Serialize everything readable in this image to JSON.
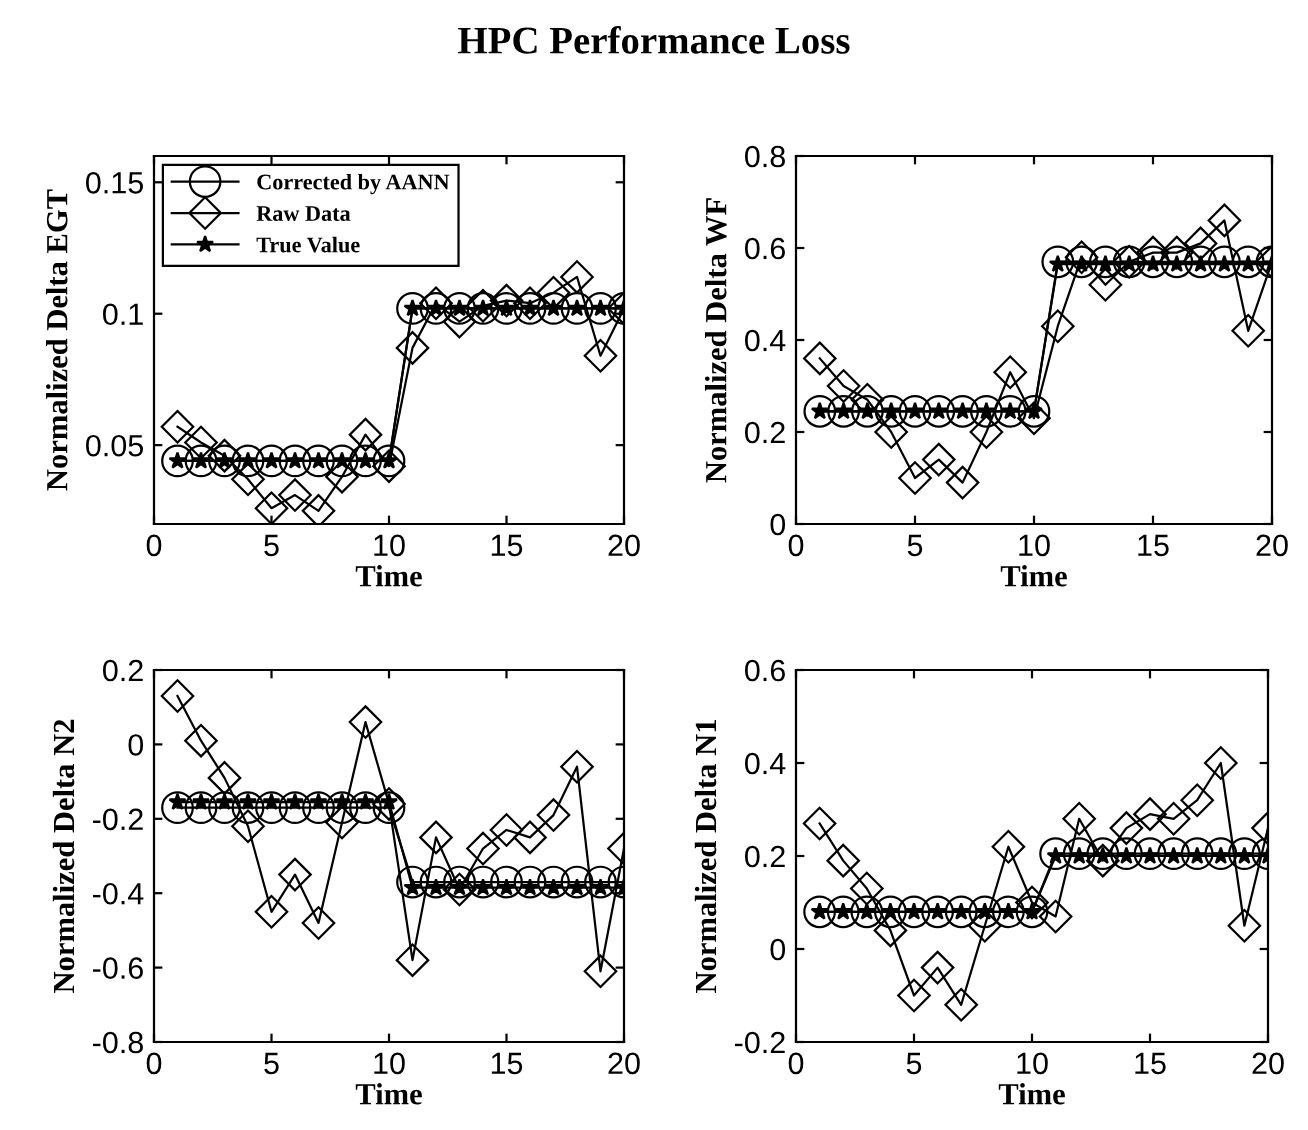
{
  "chart_data": [
    {
      "type": "line",
      "title": "HPC Performance Loss",
      "xlabel": "Time",
      "ylabel": "Normalized Delta EGT",
      "x": [
        1,
        2,
        3,
        4,
        5,
        6,
        7,
        8,
        9,
        10,
        11,
        12,
        13,
        14,
        15,
        16,
        17,
        18,
        19,
        20
      ],
      "xlim": [
        0,
        20
      ],
      "xticks": [
        0,
        5,
        10,
        15,
        20
      ],
      "ylim": [
        0.02,
        0.16
      ],
      "yticks": [
        0.05,
        0.1,
        0.15
      ],
      "legend": "top left",
      "grid": false,
      "series": [
        {
          "name": "Corrected by AANN",
          "color": "#000000",
          "marker": "circle",
          "values": [
            0.044,
            0.044,
            0.044,
            0.044,
            0.044,
            0.044,
            0.044,
            0.044,
            0.044,
            0.044,
            0.102,
            0.102,
            0.102,
            0.102,
            0.102,
            0.102,
            0.102,
            0.102,
            0.102,
            0.102
          ]
        },
        {
          "name": "Raw Data",
          "color": "#000000",
          "marker": "diamond",
          "values": [
            0.057,
            0.051,
            0.046,
            0.037,
            0.026,
            0.031,
            0.025,
            0.038,
            0.054,
            0.042,
            0.087,
            0.104,
            0.097,
            0.103,
            0.105,
            0.104,
            0.108,
            0.114,
            0.084,
            0.102
          ]
        },
        {
          "name": "True Value",
          "color": "#000000",
          "marker": "star",
          "values": [
            0.044,
            0.044,
            0.044,
            0.044,
            0.044,
            0.044,
            0.044,
            0.044,
            0.044,
            0.044,
            0.102,
            0.102,
            0.102,
            0.102,
            0.102,
            0.102,
            0.102,
            0.102,
            0.102,
            0.102
          ]
        }
      ]
    },
    {
      "type": "line",
      "xlabel": "Time",
      "ylabel": "Normalized Delta WF",
      "x": [
        1,
        2,
        3,
        4,
        5,
        6,
        7,
        8,
        9,
        10,
        11,
        12,
        13,
        14,
        15,
        16,
        17,
        18,
        19,
        20
      ],
      "xlim": [
        0,
        20
      ],
      "xticks": [
        0,
        5,
        10,
        15,
        20
      ],
      "ylim": [
        0,
        0.8
      ],
      "yticks": [
        0,
        0.2,
        0.4,
        0.6,
        0.8
      ],
      "grid": false,
      "series": [
        {
          "color": "#000000",
          "marker": "circle",
          "values": [
            0.245,
            0.245,
            0.245,
            0.245,
            0.245,
            0.245,
            0.245,
            0.245,
            0.245,
            0.245,
            0.57,
            0.57,
            0.57,
            0.57,
            0.57,
            0.57,
            0.57,
            0.57,
            0.57,
            0.57
          ]
        },
        {
          "color": "#000000",
          "marker": "diamond",
          "values": [
            0.36,
            0.3,
            0.27,
            0.2,
            0.1,
            0.14,
            0.09,
            0.2,
            0.33,
            0.23,
            0.43,
            0.58,
            0.52,
            0.57,
            0.59,
            0.59,
            0.61,
            0.66,
            0.42,
            0.57
          ]
        },
        {
          "color": "#000000",
          "marker": "star",
          "values": [
            0.245,
            0.245,
            0.245,
            0.245,
            0.245,
            0.245,
            0.245,
            0.245,
            0.245,
            0.245,
            0.565,
            0.565,
            0.565,
            0.565,
            0.565,
            0.565,
            0.565,
            0.565,
            0.565,
            0.565
          ]
        }
      ]
    },
    {
      "type": "line",
      "xlabel": "Time",
      "ylabel": "Normalized Delta N2",
      "x": [
        1,
        2,
        3,
        4,
        5,
        6,
        7,
        8,
        9,
        10,
        11,
        12,
        13,
        14,
        15,
        16,
        17,
        18,
        19,
        20
      ],
      "xlim": [
        0,
        20
      ],
      "xticks": [
        0,
        5,
        10,
        15,
        20
      ],
      "ylim": [
        -0.8,
        0.2
      ],
      "yticks": [
        -0.8,
        -0.6,
        -0.4,
        -0.2,
        0,
        0.2
      ],
      "grid": false,
      "series": [
        {
          "color": "#000000",
          "marker": "circle",
          "values": [
            -0.17,
            -0.17,
            -0.17,
            -0.17,
            -0.17,
            -0.17,
            -0.17,
            -0.17,
            -0.17,
            -0.17,
            -0.37,
            -0.37,
            -0.37,
            -0.37,
            -0.37,
            -0.37,
            -0.37,
            -0.37,
            -0.37,
            -0.37
          ]
        },
        {
          "color": "#000000",
          "marker": "diamond",
          "values": [
            0.13,
            0.01,
            -0.09,
            -0.22,
            -0.45,
            -0.35,
            -0.48,
            -0.21,
            0.06,
            -0.16,
            -0.58,
            -0.25,
            -0.39,
            -0.28,
            -0.23,
            -0.25,
            -0.19,
            -0.06,
            -0.61,
            -0.28
          ]
        },
        {
          "color": "#000000",
          "marker": "star",
          "values": [
            -0.155,
            -0.155,
            -0.155,
            -0.155,
            -0.155,
            -0.155,
            -0.155,
            -0.155,
            -0.155,
            -0.155,
            -0.385,
            -0.385,
            -0.385,
            -0.385,
            -0.385,
            -0.385,
            -0.385,
            -0.385,
            -0.385,
            -0.385
          ]
        }
      ]
    },
    {
      "type": "line",
      "xlabel": "Time",
      "ylabel": "Normalized Delta N1",
      "x": [
        1,
        2,
        3,
        4,
        5,
        6,
        7,
        8,
        9,
        10,
        11,
        12,
        13,
        14,
        15,
        16,
        17,
        18,
        19,
        20
      ],
      "xlim": [
        0,
        20
      ],
      "xticks": [
        0,
        5,
        10,
        15,
        20
      ],
      "ylim": [
        -0.2,
        0.6
      ],
      "yticks": [
        -0.2,
        0,
        0.2,
        0.4,
        0.6
      ],
      "grid": false,
      "series": [
        {
          "color": "#000000",
          "marker": "circle",
          "values": [
            0.08,
            0.08,
            0.08,
            0.08,
            0.08,
            0.08,
            0.08,
            0.08,
            0.08,
            0.08,
            0.205,
            0.205,
            0.205,
            0.205,
            0.205,
            0.205,
            0.205,
            0.205,
            0.205,
            0.205
          ]
        },
        {
          "color": "#000000",
          "marker": "diamond",
          "values": [
            0.27,
            0.19,
            0.13,
            0.04,
            -0.1,
            -0.04,
            -0.12,
            0.05,
            0.22,
            0.1,
            0.07,
            0.28,
            0.19,
            0.26,
            0.29,
            0.28,
            0.32,
            0.4,
            0.05,
            0.26
          ]
        },
        {
          "color": "#000000",
          "marker": "star",
          "values": [
            0.08,
            0.08,
            0.08,
            0.08,
            0.08,
            0.08,
            0.08,
            0.08,
            0.08,
            0.08,
            0.2,
            0.2,
            0.2,
            0.2,
            0.2,
            0.2,
            0.2,
            0.2,
            0.2,
            0.2
          ]
        }
      ]
    }
  ]
}
